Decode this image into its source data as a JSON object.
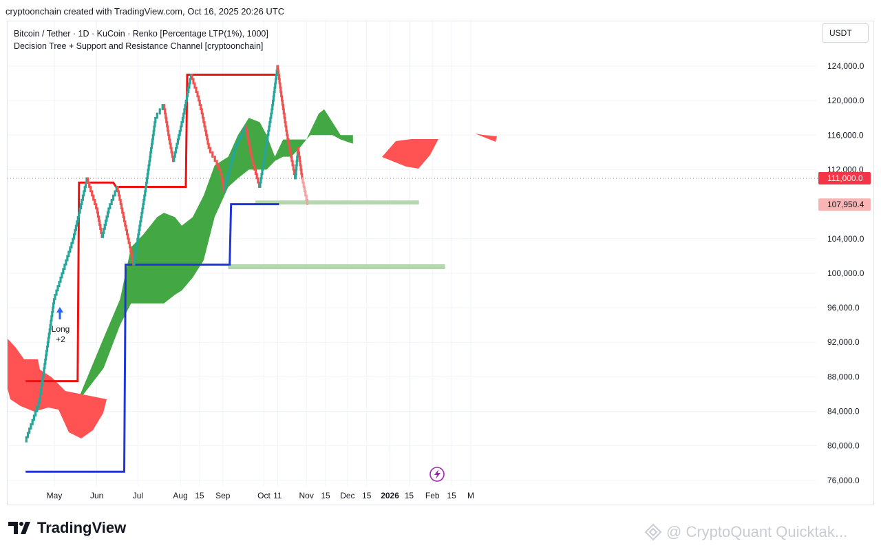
{
  "header": {
    "text": "cryptoonchain created with TradingView.com, Oct 16, 2025 20:26 UTC"
  },
  "legend": {
    "line1": "Bitcoin / Tether · 1D · KuCoin · Renko [Percentage LTP(1%), 1000]",
    "line2": "Decision Tree + Support and Resistance Channel [cryptoonchain]"
  },
  "currency_button": {
    "label": "USDT"
  },
  "branding": {
    "logo_text": "TradingView",
    "watermark": "@ CryptoQuant Quicktak..."
  },
  "signal": {
    "line1": "Long",
    "line2": "+2"
  },
  "colors": {
    "up": "#26a69a",
    "down": "#ef5350",
    "resistance": "#ee1111",
    "support": "#2136d8",
    "cloud_green": "#43a843",
    "cloud_red": "#ff5252",
    "zone": "#b5d7b0"
  },
  "chart_data": {
    "type": "line",
    "title": "Bitcoin / Tether · 1D · KuCoin · Renko [Percentage LTP(1%), 1000]",
    "xlabel": "",
    "ylabel": "",
    "ylim": [
      75000,
      126500
    ],
    "y_ticks": [
      "124,000.0",
      "120,000.0",
      "116,000.0",
      "112,000.0",
      "104,000.0",
      "100,000.0",
      "96,000.0",
      "92,000.0",
      "88,000.0",
      "84,000.0",
      "80,000.0",
      "76,000.0"
    ],
    "x_ticks": [
      "May",
      "Jun",
      "Jul",
      "Aug",
      "15",
      "Sep",
      "Oct",
      "11",
      "Nov",
      "15",
      "Dec",
      "15",
      "2026",
      "15",
      "Feb",
      "15",
      "M"
    ],
    "last_price_label": {
      "text": "111,000.0",
      "value": 111000
    },
    "secondary_price_label": {
      "text": "107,950.4",
      "value": 107950.4
    },
    "series": [
      {
        "name": "Renko",
        "type": "renko",
        "points": [
          [
            "2025-04-10",
            80500
          ],
          [
            "2025-04-20",
            85000
          ],
          [
            "2025-05-01",
            97000
          ],
          [
            "2025-05-15",
            104000
          ],
          [
            "2025-05-25",
            111000
          ],
          [
            "2025-06-01",
            107500
          ],
          [
            "2025-06-05",
            104200
          ],
          [
            "2025-06-10",
            107500
          ],
          [
            "2025-06-16",
            110000
          ],
          [
            "2025-06-22",
            105500
          ],
          [
            "2025-06-28",
            101000
          ],
          [
            "2025-07-06",
            109000
          ],
          [
            "2025-07-14",
            118000
          ],
          [
            "2025-07-20",
            119500
          ],
          [
            "2025-07-24",
            115500
          ],
          [
            "2025-07-27",
            113000
          ],
          [
            "2025-08-03",
            118000
          ],
          [
            "2025-08-09",
            123000
          ],
          [
            "2025-08-14",
            120500
          ],
          [
            "2025-08-17",
            118500
          ],
          [
            "2025-08-22",
            114500
          ],
          [
            "2025-08-27",
            113000
          ],
          [
            "2025-08-31",
            111500
          ],
          [
            "2025-09-02",
            109500
          ],
          [
            "2025-09-10",
            114500
          ],
          [
            "2025-09-18",
            117000
          ],
          [
            "2025-09-22",
            113500
          ],
          [
            "2025-09-28",
            110000
          ],
          [
            "2025-10-03",
            115000
          ],
          [
            "2025-10-07",
            119000
          ],
          [
            "2025-10-11",
            124000
          ],
          [
            "2025-10-13",
            121500
          ],
          [
            "2025-10-18",
            116000
          ],
          [
            "2025-10-21",
            113500
          ],
          [
            "2025-10-24",
            111000
          ],
          [
            "2025-10-26",
            114500
          ],
          [
            "2025-10-29",
            111000
          ],
          [
            "2025-11-02",
            108000
          ]
        ]
      },
      {
        "name": "Resistance",
        "type": "step",
        "points": [
          [
            "2025-04-10",
            87500
          ],
          [
            "2025-05-18",
            87500
          ],
          [
            "2025-05-19",
            110500
          ],
          [
            "2025-06-13",
            110500
          ],
          [
            "2025-06-15",
            110000
          ],
          [
            "2025-08-05",
            110000
          ],
          [
            "2025-08-06",
            123000
          ],
          [
            "2025-10-12",
            123000
          ]
        ]
      },
      {
        "name": "Support",
        "type": "step",
        "points": [
          [
            "2025-04-10",
            77000
          ],
          [
            "2025-06-21",
            77000
          ],
          [
            "2025-06-22",
            101000
          ],
          [
            "2025-09-06",
            101000
          ],
          [
            "2025-09-07",
            108000
          ],
          [
            "2025-10-12",
            108000
          ]
        ]
      },
      {
        "name": "Cloud upper",
        "type": "band",
        "points": [
          [
            "2025-05-20",
            86000
          ],
          [
            "2025-06-06",
            92500
          ],
          [
            "2025-06-18",
            97000
          ],
          [
            "2025-06-26",
            103000
          ],
          [
            "2025-07-05",
            104500
          ],
          [
            "2025-07-15",
            106500
          ],
          [
            "2025-07-20",
            107000
          ],
          [
            "2025-07-28",
            106500
          ],
          [
            "2025-08-02",
            105500
          ],
          [
            "2025-08-10",
            106500
          ],
          [
            "2025-08-18",
            109000
          ],
          [
            "2025-08-26",
            112500
          ],
          [
            "2025-09-05",
            113500
          ],
          [
            "2025-09-12",
            116000
          ],
          [
            "2025-09-20",
            118000
          ],
          [
            "2025-09-28",
            117500
          ],
          [
            "2025-10-03",
            116000
          ],
          [
            "2025-10-09",
            113500
          ],
          [
            "2025-10-15",
            115500
          ],
          [
            "2025-10-21",
            115500
          ],
          [
            "2025-10-27",
            115500
          ],
          [
            "2025-11-01",
            115500
          ],
          [
            "2025-11-04",
            116500
          ],
          [
            "2025-11-10",
            118500
          ],
          [
            "2025-11-14",
            119000
          ],
          [
            "2025-11-20",
            117500
          ],
          [
            "2025-11-26",
            116000
          ],
          [
            "2025-12-05",
            116000
          ]
        ]
      },
      {
        "name": "Cloud lower",
        "type": "band",
        "points": [
          [
            "2025-05-20",
            85500
          ],
          [
            "2025-06-06",
            89000
          ],
          [
            "2025-06-18",
            94000
          ],
          [
            "2025-06-26",
            96500
          ],
          [
            "2025-07-05",
            96500
          ],
          [
            "2025-07-15",
            96500
          ],
          [
            "2025-07-20",
            96500
          ],
          [
            "2025-07-28",
            97500
          ],
          [
            "2025-08-02",
            98000
          ],
          [
            "2025-08-10",
            99500
          ],
          [
            "2025-08-18",
            101500
          ],
          [
            "2025-08-26",
            106500
          ],
          [
            "2025-09-05",
            110000
          ],
          [
            "2025-09-12",
            111000
          ],
          [
            "2025-09-20",
            112000
          ],
          [
            "2025-09-28",
            112000
          ],
          [
            "2025-10-03",
            112000
          ],
          [
            "2025-10-09",
            113000
          ],
          [
            "2025-10-15",
            113500
          ],
          [
            "2025-10-21",
            113500
          ],
          [
            "2025-10-27",
            114500
          ],
          [
            "2025-11-01",
            115500
          ],
          [
            "2025-11-04",
            116000
          ],
          [
            "2025-11-10",
            116000
          ],
          [
            "2025-11-14",
            116000
          ],
          [
            "2025-11-20",
            116000
          ],
          [
            "2025-11-26",
            115500
          ],
          [
            "2025-12-05",
            115000
          ]
        ]
      }
    ],
    "zones": [
      {
        "from": "2025-09-25",
        "to": "2026-01-22",
        "low": 108000,
        "high": 108400
      },
      {
        "from": "2025-09-05",
        "to": "2026-02-10",
        "low": 100500,
        "high": 101000
      }
    ]
  }
}
